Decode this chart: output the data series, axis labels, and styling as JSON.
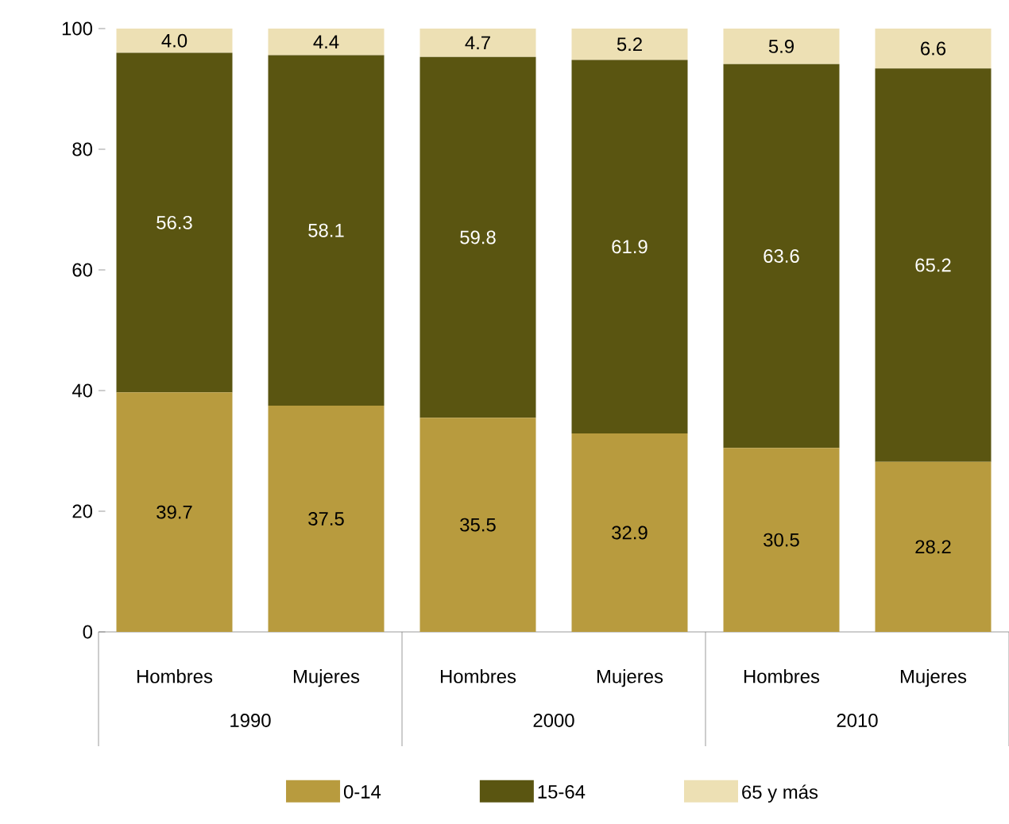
{
  "chart_data": {
    "type": "bar",
    "stacked": true,
    "categories": [
      "Hombres",
      "Mujeres",
      "Hombres",
      "Mujeres",
      "Hombres",
      "Mujeres"
    ],
    "annotations": [
      "1990",
      "2000",
      "2010"
    ],
    "series": [
      {
        "name": "0-14",
        "color": "#b89b3e",
        "values": [
          39.7,
          37.5,
          35.5,
          32.9,
          30.5,
          28.2
        ],
        "value_labels": [
          "39.7",
          "37.5",
          "35.5",
          "32.9",
          "30.5",
          "28.2"
        ]
      },
      {
        "name": "15-64",
        "color": "#5a5511",
        "values": [
          56.3,
          58.1,
          59.8,
          61.9,
          63.6,
          65.2
        ],
        "value_labels": [
          "56.3",
          "58.1",
          "59.8",
          "61.9",
          "63.6",
          "65.2"
        ]
      },
      {
        "name": "65 y más",
        "color": "#ede0b4",
        "values": [
          4.0,
          4.4,
          4.7,
          5.2,
          5.9,
          6.6
        ],
        "value_labels": [
          "4.0",
          "4.4",
          "4.7",
          "5.2",
          "5.9",
          "6.6"
        ]
      }
    ],
    "ylim": [
      0,
      100
    ],
    "yticks": [
      0,
      20,
      40,
      60,
      80,
      100
    ],
    "legend": "bottom",
    "grid": false
  }
}
